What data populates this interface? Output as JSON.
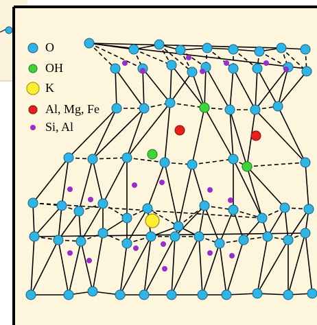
{
  "legend": [
    {
      "label": "O"
    },
    {
      "label": "OH"
    },
    {
      "label": "K"
    },
    {
      "label": "Al, Mg, Fe"
    },
    {
      "label": "Si, Al"
    }
  ]
}
